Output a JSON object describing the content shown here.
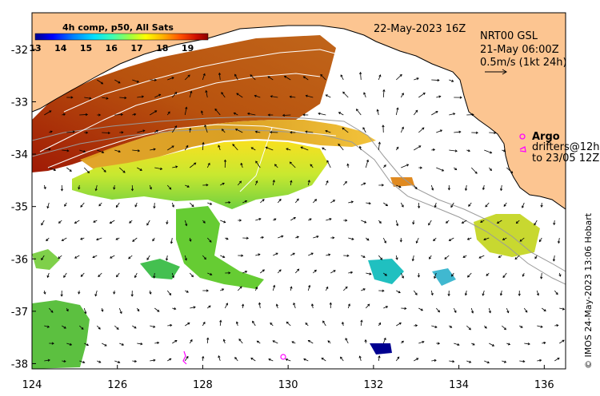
{
  "header": {
    "date": "22-May-2023 16Z",
    "product": "NRT00 GSL",
    "current_time": "21-May 06:00Z",
    "scale_arrow_label": "0.5m/s (1kt 24h)"
  },
  "colorbar": {
    "title": "4h comp, p50, All Sats",
    "ticks": [
      "13",
      "14",
      "15",
      "16",
      "17",
      "18",
      "19"
    ],
    "min": 13,
    "max": 19.8,
    "colors": [
      "#00008f",
      "#0000ff",
      "#0080ff",
      "#00e0ff",
      "#40ffb0",
      "#a0ff40",
      "#ffff00",
      "#ffb000",
      "#ff5000",
      "#d01000",
      "#8b0000"
    ]
  },
  "legend": {
    "argo_label": "Argo",
    "drifters_line1": "drifters@12h",
    "drifters_line2": "to 23/05 12Z",
    "argo_color": "#ff00ff",
    "drifter_color": "#ff00ff"
  },
  "credit": "© IMOS 24-May-2023 13:06 Hobart",
  "axes": {
    "lon_min": 124,
    "lon_max": 136.5,
    "lat_min": -38.1,
    "lat_max": -31.3,
    "lon_ticks": [
      "124",
      "126",
      "128",
      "130",
      "132",
      "134",
      "136"
    ],
    "lat_ticks": [
      "-32",
      "-33",
      "-34",
      "-35",
      "-36",
      "-37",
      "-38"
    ]
  },
  "colors": {
    "land": "#fcc591",
    "coast": "#000000",
    "contour": "#9a9a9a",
    "sst_contour": "#ffffff",
    "arrow": "#000000"
  }
}
